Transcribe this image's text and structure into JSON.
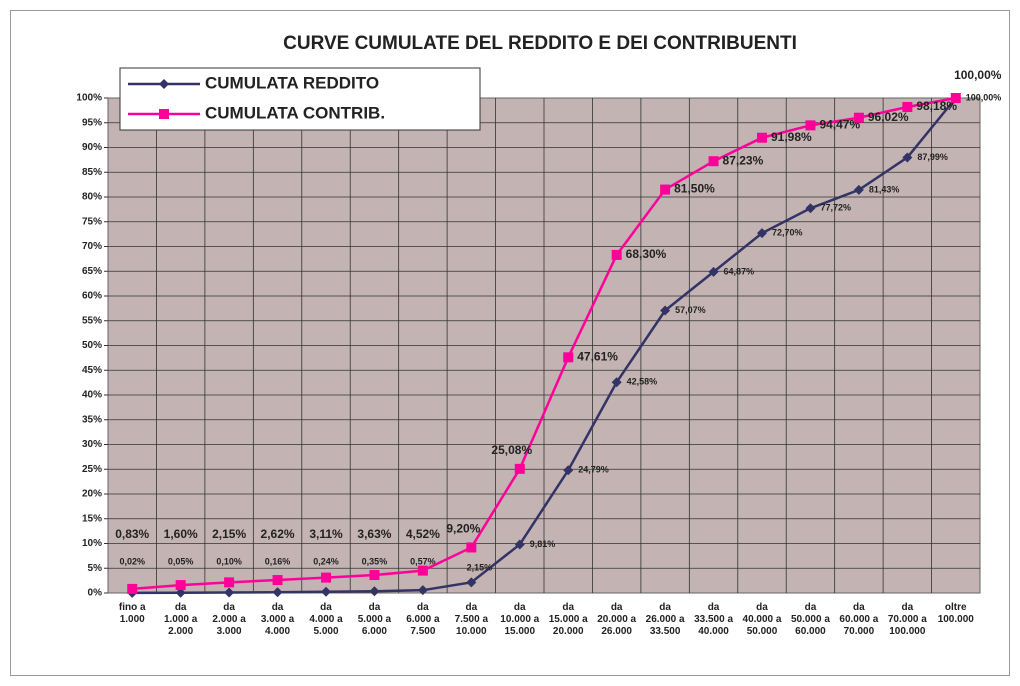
{
  "chart_data": {
    "type": "line",
    "title": "CURVE CUMULATE DEL REDDITO E DEI CONTRIBUENTI",
    "categories": [
      "fino a\n1.000",
      "da\n1.000 a\n2.000",
      "da\n2.000 a\n3.000",
      "da\n3.000 a\n4.000",
      "da\n4.000 a\n5.000",
      "da\n5.000 a\n6.000",
      "da\n6.000 a\n7.500",
      "da\n7.500 a\n10.000",
      "da\n10.000 a\n15.000",
      "da\n15.000 a\n20.000",
      "da\n20.000 a\n26.000",
      "da\n26.000 a\n33.500",
      "da\n33.500 a\n40.000",
      "da\n40.000 a\n50.000",
      "da\n50.000 a\n60.000",
      "da\n60.000 a\n70.000",
      "da\n70.000 a\n100.000",
      "oltre\n100.000"
    ],
    "series": [
      {
        "name": "CUMULATA REDDITO",
        "color": "#333366",
        "marker": "diamond",
        "values": [
          0.02,
          0.05,
          0.1,
          0.16,
          0.24,
          0.35,
          0.57,
          2.15,
          9.81,
          24.79,
          42.58,
          57.07,
          64.87,
          72.7,
          77.72,
          81.43,
          87.99,
          100.0
        ],
        "value_labels": [
          "0,02%",
          "0,05%",
          "0,10%",
          "0,16%",
          "0,24%",
          "0,35%",
          "0,57%",
          "2,15%",
          "9,81%",
          "24,79%",
          "42,58%",
          "57,07%",
          "64,87%",
          "72,70%",
          "77,72%",
          "81,43%",
          "87,99%",
          "100,00%"
        ]
      },
      {
        "name": "CUMULATA CONTRIB.",
        "color": "#ff0099",
        "marker": "square",
        "values": [
          0.83,
          1.6,
          2.15,
          2.62,
          3.11,
          3.63,
          4.52,
          9.2,
          25.08,
          47.61,
          68.3,
          81.5,
          87.23,
          91.98,
          94.47,
          96.02,
          98.18,
          100.0
        ],
        "value_labels": [
          "0,83%",
          "1,60%",
          "2,15%",
          "2,62%",
          "3,11%",
          "3,63%",
          "4,52%",
          "9,20%",
          "25,08%",
          "47,61%",
          "68,30%",
          "81,50%",
          "87,23%",
          "91,98%",
          "94,47%",
          "96,02%",
          "98,18%",
          "100,00%"
        ]
      }
    ],
    "ylim": [
      0,
      100
    ],
    "yticks": [
      {
        "value": 0,
        "label": "0%"
      },
      {
        "value": 5,
        "label": "5%"
      },
      {
        "value": 10,
        "label": "10%"
      },
      {
        "value": 15,
        "label": "15%"
      },
      {
        "value": 20,
        "label": "20%"
      },
      {
        "value": 25,
        "label": "25%"
      },
      {
        "value": 30,
        "label": "30%"
      },
      {
        "value": 35,
        "label": "35%"
      },
      {
        "value": 40,
        "label": "40%"
      },
      {
        "value": 45,
        "label": "45%"
      },
      {
        "value": 50,
        "label": "50%"
      },
      {
        "value": 55,
        "label": "55%"
      },
      {
        "value": 60,
        "label": "60%"
      },
      {
        "value": 65,
        "label": "65%"
      },
      {
        "value": 70,
        "label": "70%"
      },
      {
        "value": 75,
        "label": "75%"
      },
      {
        "value": 80,
        "label": "80%"
      },
      {
        "value": 85,
        "label": "85%"
      },
      {
        "value": 90,
        "label": "90%"
      },
      {
        "value": 95,
        "label": "95%"
      },
      {
        "value": 100,
        "label": "100%"
      }
    ],
    "grid": true,
    "legend": "upper left"
  }
}
